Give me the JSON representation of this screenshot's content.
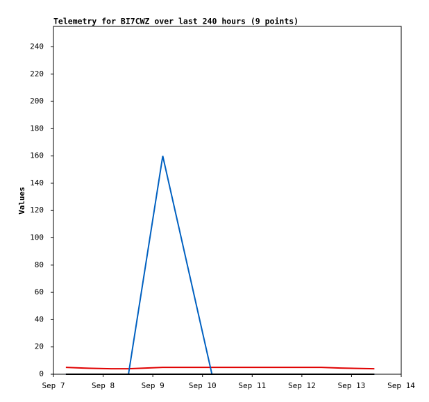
{
  "chart_data": {
    "type": "line",
    "title": "Telemetry for BI7CWZ over last 240 hours (9 points)",
    "ylabel": "Values",
    "x": [
      0.25,
      0.6,
      1.16,
      1.51,
      2.2,
      3.19,
      5.39,
      5.78,
      6.46
    ],
    "xlim": [
      0,
      7
    ],
    "xticks": [
      {
        "value": 0,
        "label": "Sep 7"
      },
      {
        "value": 1,
        "label": "Sep 8"
      },
      {
        "value": 2,
        "label": "Sep 9"
      },
      {
        "value": 3,
        "label": "Sep 10"
      },
      {
        "value": 4,
        "label": "Sep 11"
      },
      {
        "value": 5,
        "label": "Sep 12"
      },
      {
        "value": 6,
        "label": "Sep 13"
      },
      {
        "value": 7,
        "label": "Sep 14"
      }
    ],
    "ylim": [
      0,
      255
    ],
    "yticks": [
      0,
      20,
      40,
      60,
      80,
      100,
      120,
      140,
      160,
      180,
      200,
      220,
      240
    ],
    "series": [
      {
        "color": "#e00000",
        "values": [
          5,
          4.5,
          4,
          4,
          5,
          5,
          5,
          4.5,
          4
        ]
      },
      {
        "color": "#0060c0",
        "values": [
          0,
          0,
          0,
          0,
          160,
          0,
          0,
          0,
          0
        ]
      },
      {
        "color": "#000000",
        "values": [
          0,
          0,
          0,
          0,
          0,
          0,
          0,
          0,
          0
        ]
      }
    ]
  }
}
